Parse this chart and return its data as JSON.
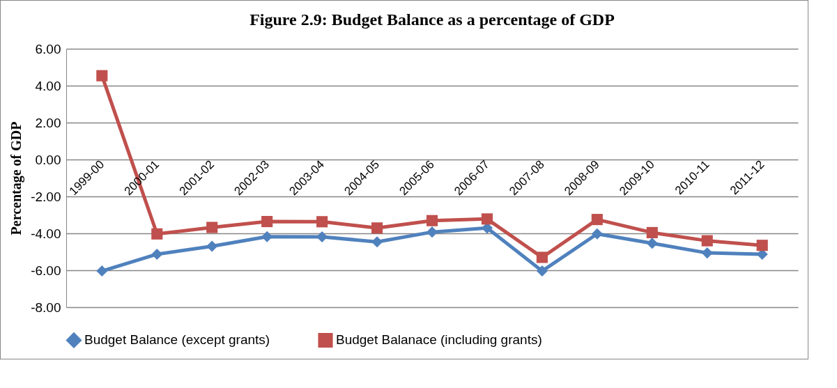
{
  "chart_data": {
    "type": "line",
    "title": "Figure 2.9: Budget Balance as a percentage of  GDP",
    "ylabel": "Percentage of GDP",
    "categories": [
      "1999-00",
      "2000-01",
      "2001-02",
      "2002-03",
      "2003-04",
      "2004-05",
      "2005-06",
      "2006-07",
      "2007-08",
      "2008-09",
      "2009-10",
      "2010-11",
      "2011-12"
    ],
    "series": [
      {
        "name": "Budget Balance (except grants)",
        "color": "#4f81bd",
        "marker": "diamond",
        "values": [
          -6.04,
          -5.13,
          -4.7,
          -4.18,
          -4.19,
          -4.46,
          -3.93,
          -3.71,
          -6.04,
          -4.03,
          -4.54,
          -5.06,
          -5.13
        ]
      },
      {
        "name": "Budget Balanace (including grants)",
        "color": "#c0504d",
        "marker": "square",
        "values": [
          4.54,
          -4.03,
          -3.68,
          -3.36,
          -3.37,
          -3.71,
          -3.31,
          -3.22,
          -5.3,
          -3.25,
          -3.96,
          -4.4,
          -4.65
        ]
      }
    ],
    "ylim": [
      -8,
      6
    ],
    "yticks": [
      {
        "value": -8,
        "label": "-8.00"
      },
      {
        "value": -6,
        "label": "-6.00"
      },
      {
        "value": -4,
        "label": "-4.00"
      },
      {
        "value": -2,
        "label": "-2.00"
      },
      {
        "value": 0,
        "label": "0.00"
      },
      {
        "value": 2,
        "label": "2.00"
      },
      {
        "value": 4,
        "label": "4.00"
      },
      {
        "value": 6,
        "label": "6.00"
      }
    ],
    "grid": "y",
    "legend": "bottom",
    "line_style": "solid"
  }
}
